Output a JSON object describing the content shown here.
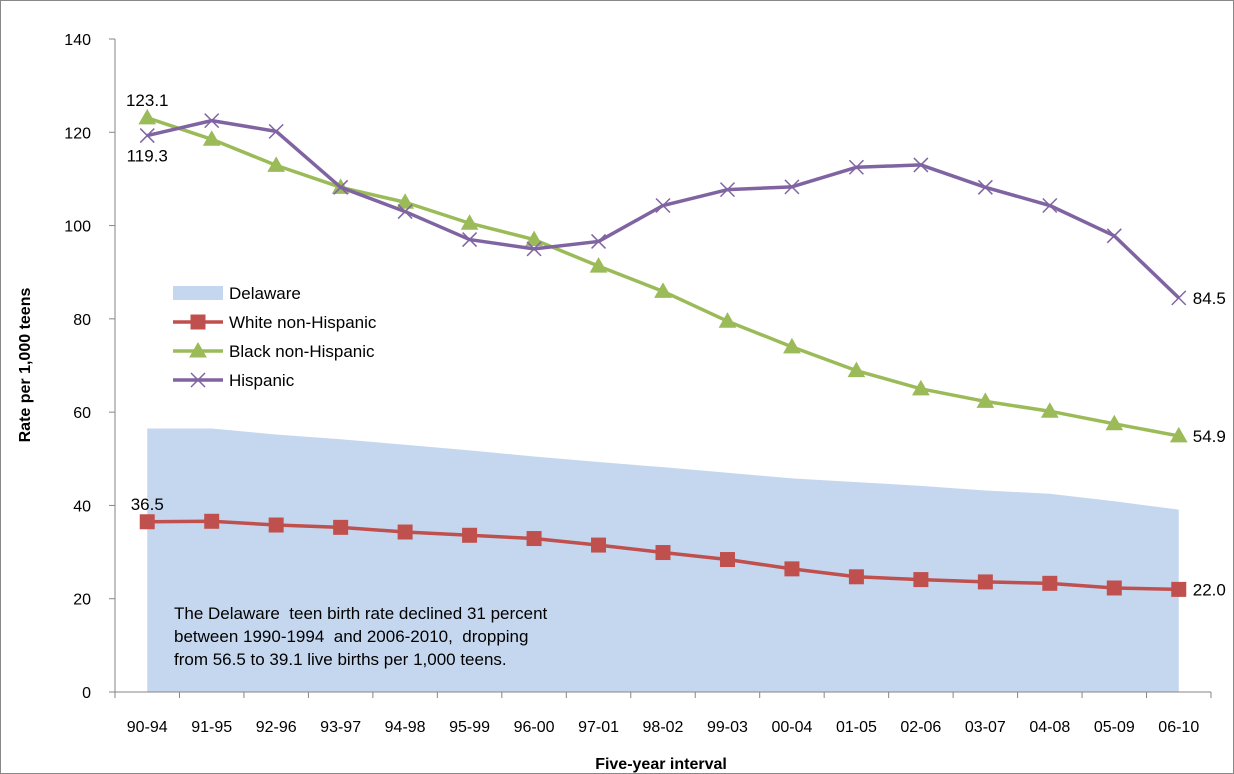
{
  "chart_data": {
    "type": "line",
    "title": "",
    "xlabel": "Five-year interval",
    "ylabel": "Rate per 1,000 teens",
    "ylim": [
      0,
      140
    ],
    "yticks": [
      0,
      20,
      40,
      60,
      80,
      100,
      120,
      140
    ],
    "grid": false,
    "legend": "left",
    "categories": [
      "90-94",
      "91-95",
      "92-96",
      "93-97",
      "94-98",
      "95-99",
      "96-00",
      "97-01",
      "98-02",
      "99-03",
      "00-04",
      "01-05",
      "02-06",
      "03-07",
      "04-08",
      "05-09",
      "06-10"
    ],
    "series": [
      {
        "name": "Delaware",
        "kind": "area",
        "color": "#c5d7ef",
        "values": [
          56.5,
          56.5,
          55.2,
          54.2,
          53.0,
          51.8,
          50.5,
          49.3,
          48.2,
          47.0,
          45.8,
          45.0,
          44.2,
          43.2,
          42.5,
          40.9,
          39.1
        ]
      },
      {
        "name": "White non-Hispanic",
        "kind": "line",
        "marker": "square",
        "color": "#c0504d",
        "values": [
          36.5,
          36.6,
          35.8,
          35.3,
          34.3,
          33.6,
          32.9,
          31.5,
          29.9,
          28.4,
          26.4,
          24.7,
          24.1,
          23.6,
          23.3,
          22.3,
          22.0
        ]
      },
      {
        "name": "Black non-Hispanic",
        "kind": "line",
        "marker": "triangle",
        "color": "#9bbb59",
        "values": [
          123.1,
          118.5,
          112.9,
          108.2,
          105.0,
          100.5,
          97.0,
          91.3,
          85.9,
          79.5,
          74.0,
          68.9,
          65.0,
          62.3,
          60.2,
          57.5,
          54.9
        ]
      },
      {
        "name": "Hispanic",
        "kind": "line",
        "marker": "x",
        "color": "#8064a2",
        "values": [
          119.3,
          122.5,
          120.2,
          108.2,
          103.0,
          97.0,
          95.0,
          96.6,
          104.3,
          107.7,
          108.3,
          112.5,
          113.0,
          108.2,
          104.3,
          97.8,
          84.5
        ]
      }
    ],
    "data_labels": [
      {
        "series": 2,
        "index": 0,
        "text": "123.1",
        "pos": "above"
      },
      {
        "series": 3,
        "index": 0,
        "text": "119.3",
        "pos": "below"
      },
      {
        "series": 1,
        "index": 0,
        "text": "36.5",
        "pos": "above"
      },
      {
        "series": 3,
        "index": 16,
        "text": "84.5",
        "pos": "right"
      },
      {
        "series": 2,
        "index": 16,
        "text": "54.9",
        "pos": "right"
      },
      {
        "series": 1,
        "index": 16,
        "text": "22.0",
        "pos": "right"
      }
    ],
    "annotation": [
      "The Delaware  teen birth rate declined 31 percent",
      "between 1990-1994  and 2006-2010,  dropping",
      "from 56.5 to 39.1 live births per 1,000 teens."
    ]
  }
}
